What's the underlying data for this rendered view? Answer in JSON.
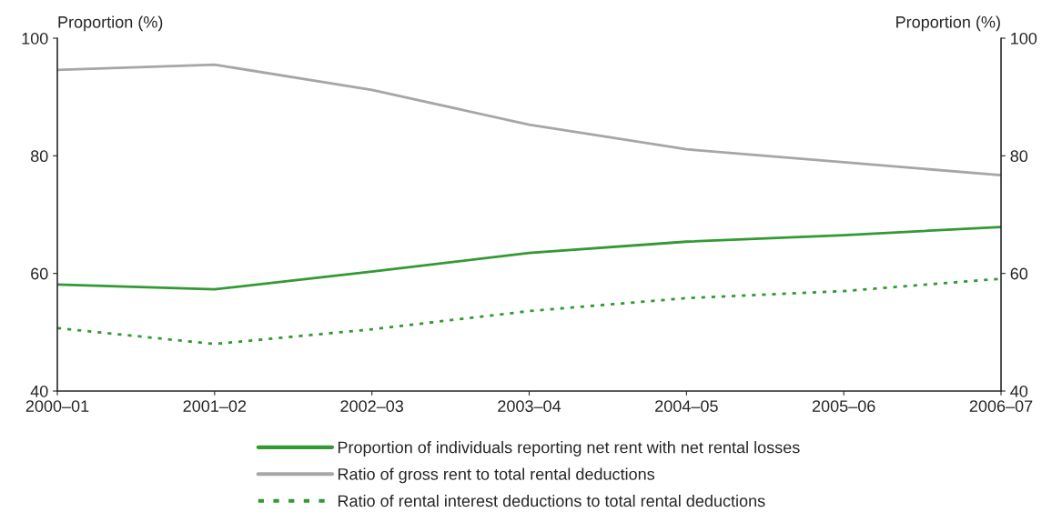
{
  "chart_data": {
    "type": "line",
    "categories": [
      "2000–01",
      "2001–02",
      "2002–03",
      "2003–04",
      "2004–05",
      "2005–06",
      "2006–07"
    ],
    "ylabel": "Proportion (%)",
    "y2label": "Proportion (%)",
    "ylim": [
      40,
      100
    ],
    "yticks": [
      40,
      60,
      80,
      100
    ],
    "y2lim": [
      40,
      100
    ],
    "y2ticks": [
      40,
      60,
      80,
      100
    ],
    "grid": false,
    "legend": "bottom",
    "series": [
      {
        "name": "Proportion of individuals reporting net rent with net rental losses",
        "color": "#339933",
        "line_style": "solid",
        "values": [
          58.1,
          57.3,
          60.3,
          63.5,
          65.4,
          66.5,
          67.9
        ]
      },
      {
        "name": "Ratio of gross rent to total rental deductions",
        "color": "#a6a6a6",
        "line_style": "solid",
        "values": [
          94.6,
          95.5,
          91.2,
          85.3,
          81.1,
          78.9,
          76.7
        ]
      },
      {
        "name": "Ratio of rental interest deductions to total rental deductions",
        "color": "#339933",
        "line_style": "dotted",
        "values": [
          50.7,
          48.0,
          50.5,
          53.6,
          55.8,
          57.0,
          59.1
        ]
      }
    ]
  }
}
